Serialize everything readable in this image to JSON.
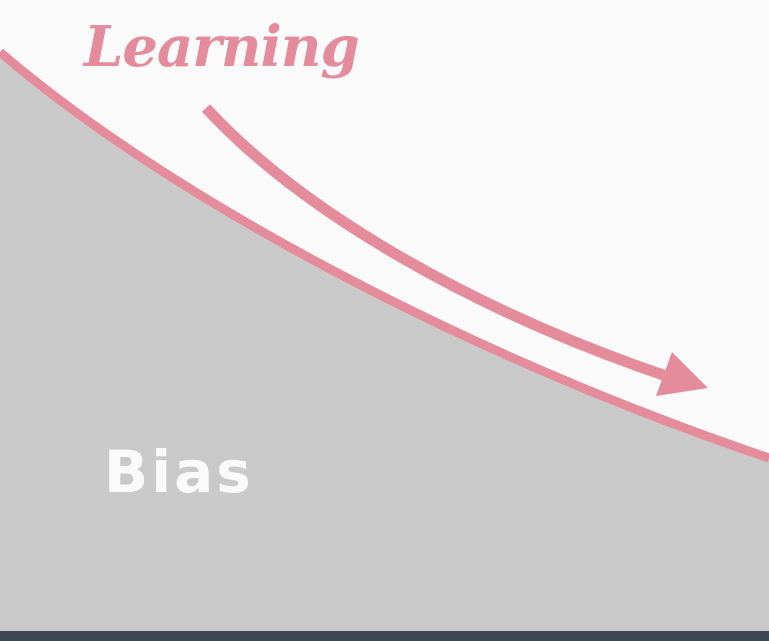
{
  "labels": {
    "learning": "Learning",
    "bias": "Bias"
  },
  "colors": {
    "background": "#fafafb",
    "bias_region": "#c9c9c9",
    "curve": "#e48b9c",
    "bias_text": "#fafafa",
    "footer": "#3d4754"
  }
}
